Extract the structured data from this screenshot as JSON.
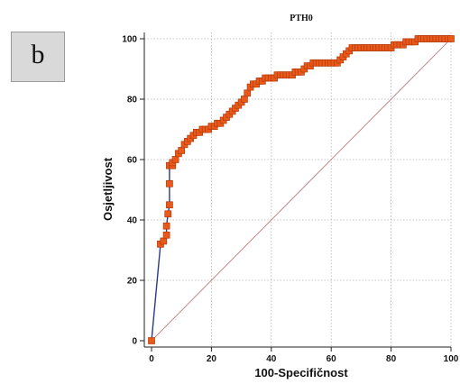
{
  "panel_label": "b",
  "chart_data": {
    "type": "line",
    "title": "PTH0",
    "xlabel": "100-Specifičnost",
    "ylabel": "Osjetljivost",
    "xlim": [
      0,
      100
    ],
    "ylim": [
      0,
      100
    ],
    "xticks": [
      0,
      20,
      40,
      60,
      80,
      100
    ],
    "yticks": [
      0,
      20,
      40,
      60,
      80,
      100
    ],
    "grid": true,
    "colors": {
      "roc_line": "#2b3a8c",
      "marker_fill": "#e8591a",
      "marker_edge": "#b33a0a",
      "diagonal": "#b86a6a",
      "grid": "#b5b5b5"
    },
    "diagonal_reference": [
      [
        0,
        0
      ],
      [
        100,
        100
      ]
    ],
    "series": [
      {
        "x": [
          0,
          3,
          4,
          5,
          5,
          5.5,
          6,
          6,
          6,
          7,
          7,
          8,
          9,
          10,
          11,
          12,
          13,
          14,
          15,
          16,
          17,
          18,
          19,
          20,
          21,
          22,
          23,
          24,
          25,
          26,
          27,
          28,
          29,
          30,
          31,
          32,
          33,
          34,
          35,
          36,
          37,
          38,
          39,
          40,
          41,
          42,
          43,
          44,
          45,
          46,
          47,
          48,
          49,
          50,
          51,
          52,
          53,
          54,
          55,
          56,
          57,
          58,
          59,
          60,
          61,
          62,
          63,
          64,
          65,
          66,
          67,
          68,
          69,
          70,
          71,
          72,
          73,
          74,
          75,
          76,
          77,
          78,
          79,
          80,
          81,
          82,
          83,
          84,
          85,
          86,
          87,
          88,
          89,
          90,
          91,
          92,
          93,
          94,
          95,
          96,
          97,
          98,
          99,
          100
        ],
        "y": [
          0,
          32,
          33,
          35,
          38,
          42,
          45,
          52,
          58,
          58,
          59,
          60,
          62,
          63,
          65,
          66,
          67,
          68,
          69,
          69,
          70,
          70,
          70,
          71,
          71,
          72,
          72,
          73,
          74,
          75,
          76,
          77,
          78,
          79,
          80,
          82,
          84,
          85,
          85,
          86,
          86,
          87,
          87,
          87,
          87,
          88,
          88,
          88,
          88,
          88,
          88,
          89,
          89,
          89,
          90,
          91,
          91,
          92,
          92,
          92,
          92,
          92,
          92,
          92,
          92,
          92,
          93,
          94,
          95,
          96,
          97,
          97,
          97,
          97,
          97,
          97,
          97,
          97,
          97,
          97,
          97,
          97,
          97,
          97,
          98,
          98,
          98,
          98,
          99,
          99,
          99,
          99,
          100,
          100,
          100,
          100,
          100,
          100,
          100,
          100,
          100,
          100,
          100,
          100
        ]
      }
    ]
  }
}
